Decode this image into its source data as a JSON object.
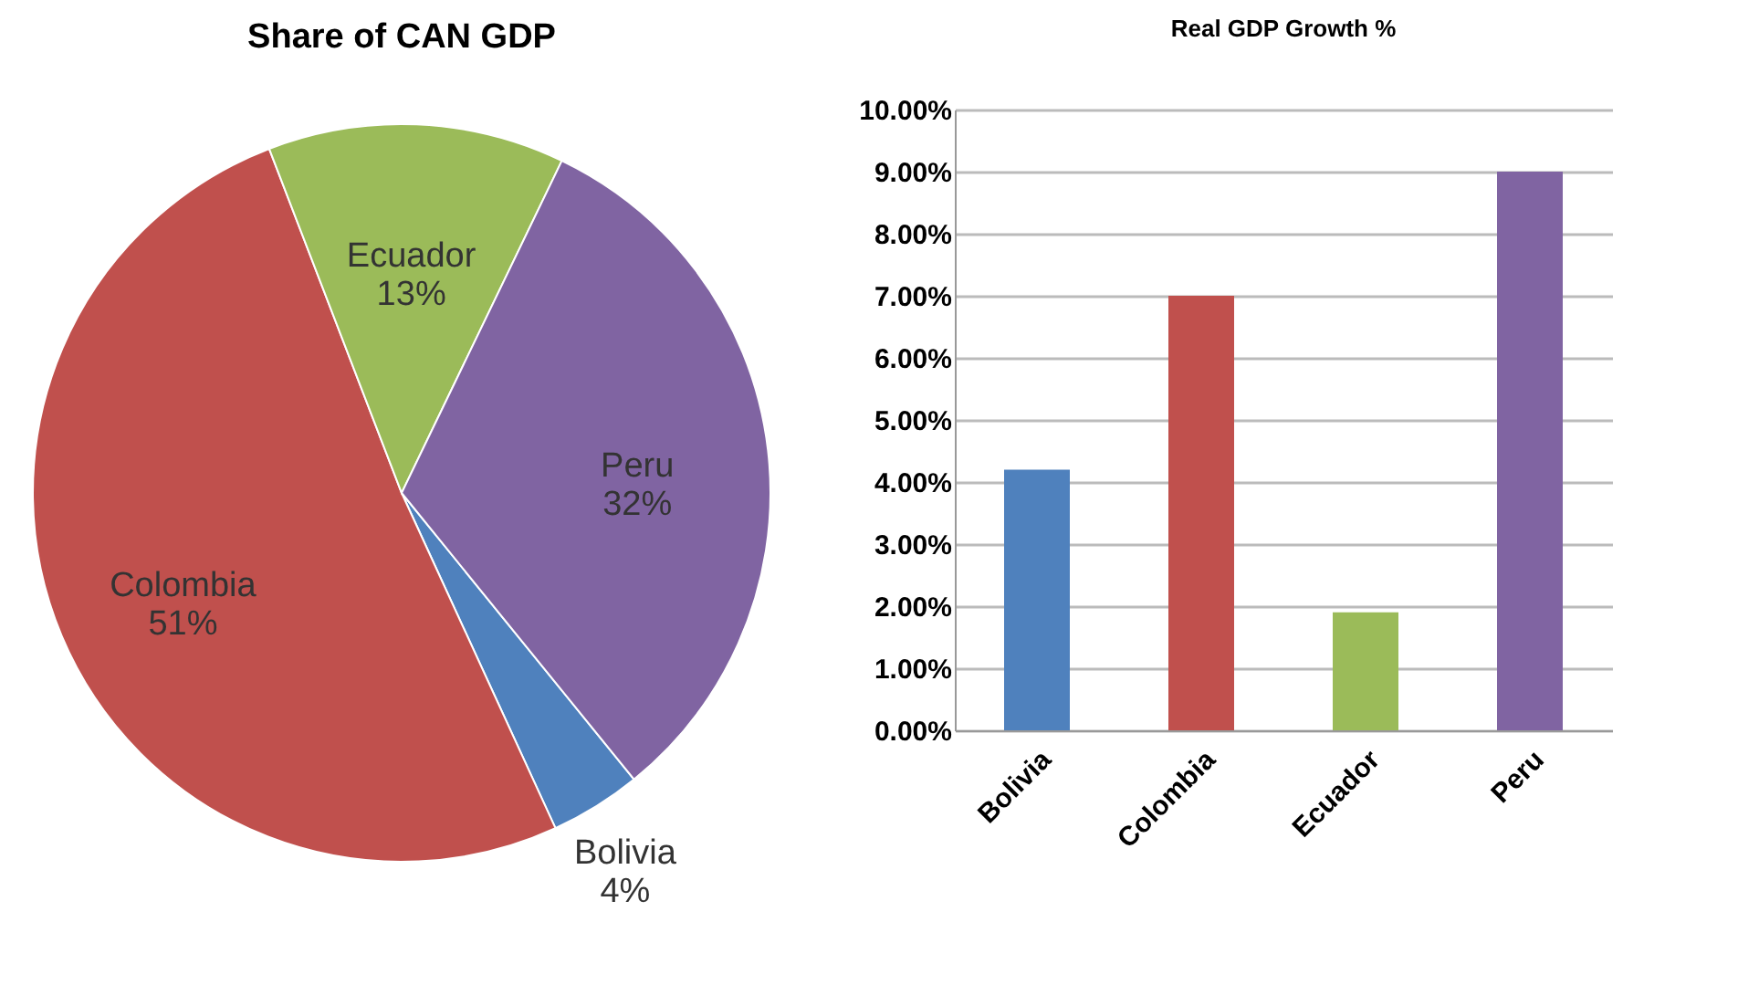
{
  "chart_data": [
    {
      "type": "pie",
      "title": "Share of CAN GDP",
      "categories": [
        "Bolivia",
        "Colombia",
        "Ecuador",
        "Peru"
      ],
      "values": [
        4,
        51,
        13,
        32
      ],
      "colors": [
        "#4f81bd",
        "#c0504d",
        "#9bbb59",
        "#8064a2"
      ],
      "value_labels": [
        "4%",
        "51%",
        "13%",
        "32%"
      ],
      "legend": false
    },
    {
      "type": "bar",
      "title": "Real GDP Growth %",
      "categories": [
        "Bolivia",
        "Colombia",
        "Ecuador",
        "Peru"
      ],
      "values": [
        4.2,
        7.0,
        1.9,
        9.0
      ],
      "colors": [
        "#4f81bd",
        "#c0504d",
        "#9bbb59",
        "#8064a2"
      ],
      "ylim": [
        0,
        10
      ],
      "yticks": [
        {
          "value": 0,
          "label": "0.00%"
        },
        {
          "value": 1,
          "label": "1.00%"
        },
        {
          "value": 2,
          "label": "2.00%"
        },
        {
          "value": 3,
          "label": "3.00%"
        },
        {
          "value": 4,
          "label": "4.00%"
        },
        {
          "value": 5,
          "label": "5.00%"
        },
        {
          "value": 6,
          "label": "6.00%"
        },
        {
          "value": 7,
          "label": "7.00%"
        },
        {
          "value": 8,
          "label": "8.00%"
        },
        {
          "value": 9,
          "label": "9.00%"
        },
        {
          "value": 10,
          "label": "10.00%"
        }
      ],
      "grid": "y",
      "legend": false
    }
  ]
}
